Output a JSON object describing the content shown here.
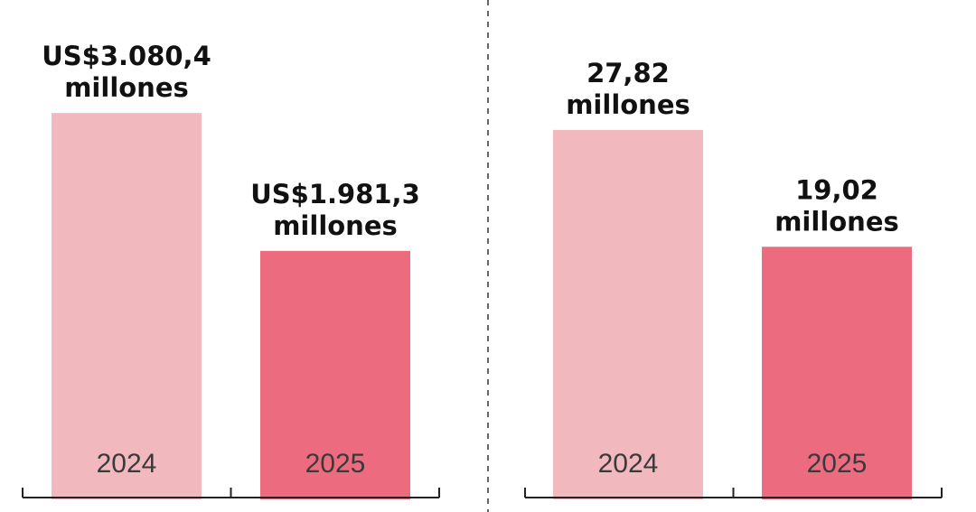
{
  "chart_data": [
    {
      "type": "bar",
      "categories": [
        "2024",
        "2025"
      ],
      "values": [
        3080.4,
        1981.3
      ],
      "value_labels": [
        [
          "US$3.080,4",
          "millones"
        ],
        [
          "US$1.981,3",
          "millones"
        ]
      ],
      "colors": [
        "#f1b9bd",
        "#ec6b7e"
      ],
      "ylim": [
        0,
        3600
      ],
      "title": "",
      "xlabel": "",
      "ylabel": ""
    },
    {
      "type": "bar",
      "categories": [
        "2024",
        "2025"
      ],
      "values": [
        27.82,
        19.02
      ],
      "value_labels": [
        [
          "27,82",
          "millones"
        ],
        [
          "19,02",
          "millones"
        ]
      ],
      "colors": [
        "#f1b9bd",
        "#ec6b7e"
      ],
      "ylim": [
        0,
        34
      ],
      "title": "",
      "xlabel": "",
      "ylabel": ""
    }
  ]
}
